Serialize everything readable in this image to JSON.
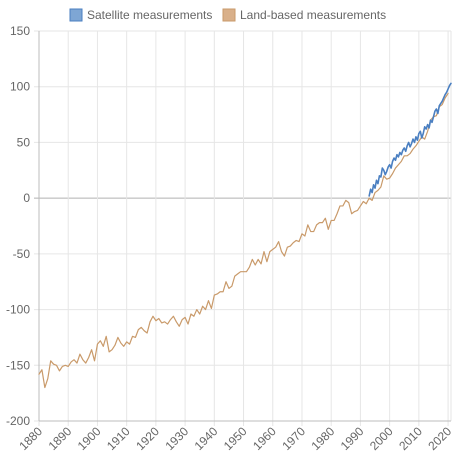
{
  "chart_data": {
    "type": "line",
    "title": "",
    "xlabel": "",
    "ylabel": "",
    "xlim": [
      1880,
      2021
    ],
    "ylim": [
      -200,
      150
    ],
    "y_ticks": [
      150,
      100,
      50,
      0,
      -50,
      -100,
      -150,
      -200
    ],
    "x_ticks": [
      1880,
      1890,
      1900,
      1910,
      1920,
      1930,
      1940,
      1950,
      1960,
      1970,
      1980,
      1990,
      2000,
      2010,
      2020
    ],
    "grid": true,
    "legend_position": "top",
    "series": [
      {
        "name": "Satellite measurements",
        "color": "#4a7fc1",
        "x": [
          1993.0,
          1993.5,
          1994.0,
          1994.5,
          1995.0,
          1995.5,
          1996.0,
          1996.5,
          1997.0,
          1997.5,
          1998.0,
          1998.5,
          1999.0,
          1999.5,
          2000.0,
          2000.5,
          2001.0,
          2001.5,
          2002.0,
          2002.5,
          2003.0,
          2003.5,
          2004.0,
          2004.5,
          2005.0,
          2005.5,
          2006.0,
          2006.5,
          2007.0,
          2007.5,
          2008.0,
          2008.5,
          2009.0,
          2009.5,
          2010.0,
          2010.5,
          2011.0,
          2011.5,
          2012.0,
          2012.5,
          2013.0,
          2013.5,
          2014.0,
          2014.5,
          2015.0,
          2015.5,
          2016.0,
          2016.5,
          2017.0,
          2017.5,
          2018.0,
          2018.5,
          2019.0,
          2019.5,
          2020.0,
          2020.5,
          2021.0
        ],
        "values": [
          2,
          8,
          5,
          12,
          9,
          16,
          13,
          20,
          19,
          27,
          25,
          21,
          24,
          28,
          30,
          27,
          33,
          36,
          34,
          39,
          37,
          41,
          39,
          43,
          45,
          42,
          47,
          50,
          46,
          49,
          53,
          50,
          55,
          52,
          58,
          60,
          54,
          58,
          64,
          62,
          66,
          63,
          70,
          68,
          73,
          78,
          80,
          76,
          83,
          85,
          87,
          90,
          93,
          95,
          98,
          101,
          103
        ]
      },
      {
        "name": "Land-based measurements",
        "color": "#c99a6a",
        "x": [
          1880,
          1881,
          1882,
          1883,
          1884,
          1885,
          1886,
          1887,
          1888,
          1889,
          1890,
          1891,
          1892,
          1893,
          1894,
          1895,
          1896,
          1897,
          1898,
          1899,
          1900,
          1901,
          1902,
          1903,
          1904,
          1905,
          1906,
          1907,
          1908,
          1909,
          1910,
          1911,
          1912,
          1913,
          1914,
          1915,
          1916,
          1917,
          1918,
          1919,
          1920,
          1921,
          1922,
          1923,
          1924,
          1925,
          1926,
          1927,
          1928,
          1929,
          1930,
          1931,
          1932,
          1933,
          1934,
          1935,
          1936,
          1937,
          1938,
          1939,
          1940,
          1941,
          1942,
          1943,
          1944,
          1945,
          1946,
          1947,
          1948,
          1949,
          1950,
          1951,
          1952,
          1953,
          1954,
          1955,
          1956,
          1957,
          1958,
          1959,
          1960,
          1961,
          1962,
          1963,
          1964,
          1965,
          1966,
          1967,
          1968,
          1969,
          1970,
          1971,
          1972,
          1973,
          1974,
          1975,
          1976,
          1977,
          1978,
          1979,
          1980,
          1981,
          1982,
          1983,
          1984,
          1985,
          1986,
          1987,
          1988,
          1989,
          1990,
          1991,
          1992,
          1993,
          1994,
          1995,
          1996,
          1997,
          1998,
          1999,
          2000,
          2001,
          2002,
          2003,
          2004,
          2005,
          2006,
          2007,
          2008,
          2009,
          2010,
          2011,
          2012,
          2013,
          2014,
          2015,
          2016,
          2017,
          2018,
          2019,
          2020
        ],
        "values": [
          -158,
          -154,
          -170,
          -162,
          -146,
          -149,
          -150,
          -155,
          -151,
          -150,
          -151,
          -147,
          -145,
          -148,
          -140,
          -145,
          -148,
          -143,
          -136,
          -146,
          -131,
          -128,
          -133,
          -124,
          -138,
          -136,
          -132,
          -125,
          -130,
          -133,
          -129,
          -131,
          -124,
          -125,
          -118,
          -116,
          -119,
          -121,
          -111,
          -106,
          -110,
          -108,
          -112,
          -111,
          -113,
          -109,
          -106,
          -111,
          -115,
          -109,
          -107,
          -113,
          -104,
          -106,
          -100,
          -104,
          -97,
          -100,
          -92,
          -99,
          -87,
          -86,
          -84,
          -84,
          -75,
          -81,
          -79,
          -70,
          -68,
          -66,
          -66,
          -66,
          -62,
          -55,
          -60,
          -55,
          -59,
          -48,
          -57,
          -48,
          -46,
          -44,
          -39,
          -48,
          -52,
          -44,
          -43,
          -40,
          -38,
          -39,
          -32,
          -34,
          -24,
          -30,
          -30,
          -24,
          -22,
          -22,
          -18,
          -28,
          -20,
          -20,
          -14,
          -7,
          -7,
          -2,
          -4,
          -14,
          -12,
          -11,
          -7,
          -3,
          -5,
          0,
          -2,
          5,
          7,
          10,
          20,
          17,
          18,
          22,
          27,
          30,
          33,
          38,
          38,
          40,
          44,
          47,
          51,
          55,
          53,
          60,
          70,
          73,
          74,
          82,
          84,
          90,
          94
        ]
      }
    ]
  }
}
